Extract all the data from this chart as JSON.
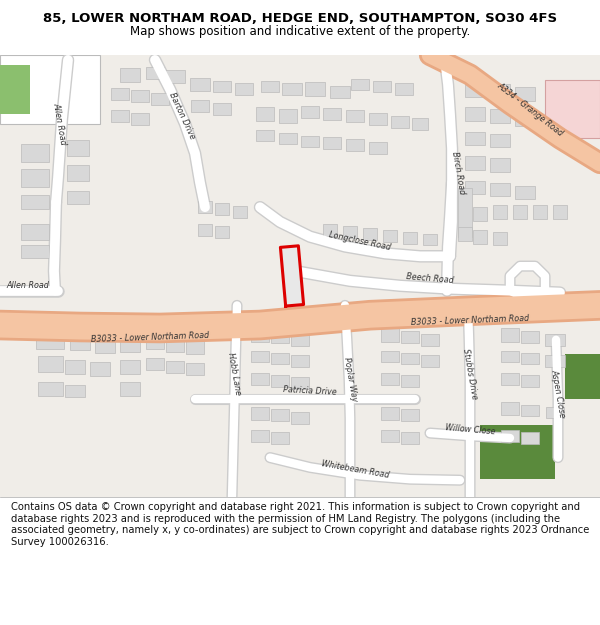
{
  "title": "85, LOWER NORTHAM ROAD, HEDGE END, SOUTHAMPTON, SO30 4FS",
  "subtitle": "Map shows position and indicative extent of the property.",
  "footer": "Contains OS data © Crown copyright and database right 2021. This information is subject to Crown copyright and database rights 2023 and is reproduced with the permission of HM Land Registry. The polygons (including the associated geometry, namely x, y co-ordinates) are subject to Crown copyright and database rights 2023 Ordnance Survey 100026316.",
  "map_bg": "#f0ede8",
  "road_main_color": "#f5c5a3",
  "road_main_edge": "#e8a882",
  "road_white": "#ffffff",
  "road_white_edge": "#cccccc",
  "building_color": "#d8d8d8",
  "building_edge": "#bbbbbb",
  "green_dark": "#5a8a3c",
  "green_light": "#8bbf6e",
  "pink_fill": "#f5d5d5",
  "pink_edge": "#d4a0a0",
  "highlight_red": "#dd0000",
  "highlight_fill": "#e8e8e8",
  "title_fontsize": 9.5,
  "subtitle_fontsize": 8.5,
  "footer_fontsize": 7.2,
  "label_fontsize": 5.8,
  "label_color": "#333333"
}
